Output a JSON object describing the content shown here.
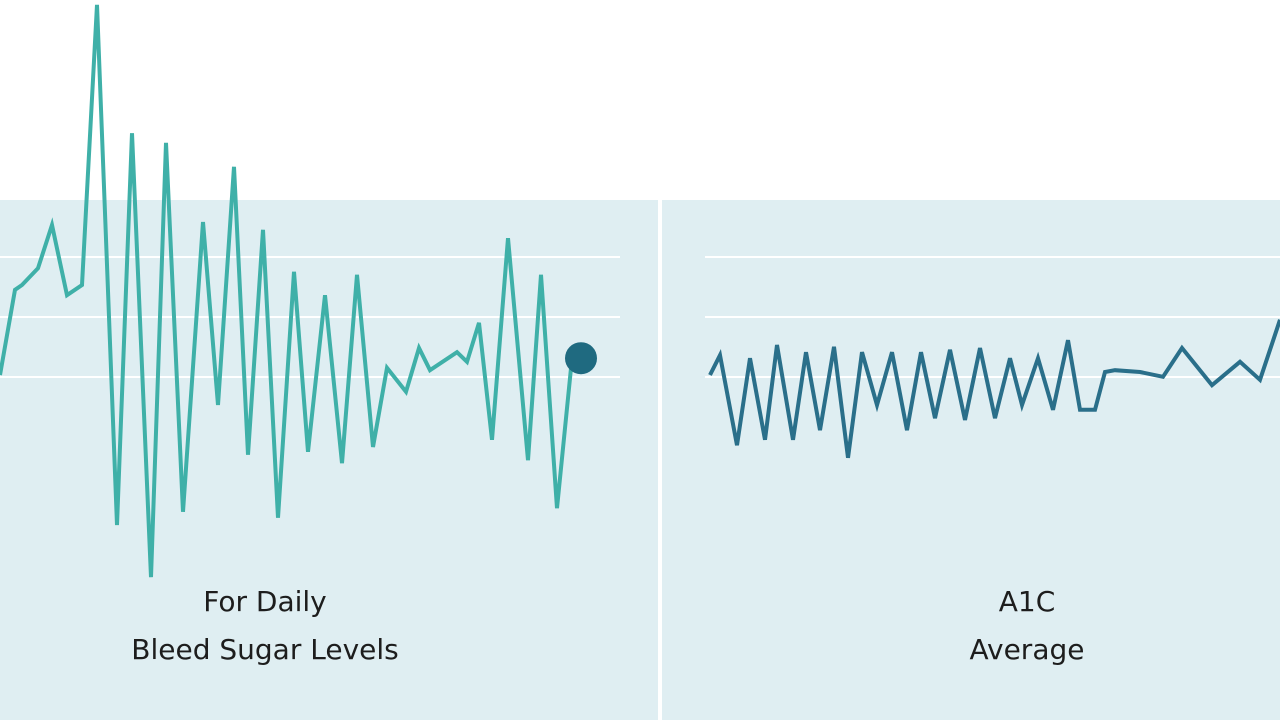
{
  "chart_data": [
    {
      "type": "line",
      "title": "For Daily",
      "subtitle": "Bleed Sugar Levels",
      "xlim": [
        0,
        658
      ],
      "ylim": [
        0,
        100
      ],
      "highlight_last": true,
      "series": [
        {
          "color": "#3fb0a8",
          "x": [
            0,
            15,
            22,
            38,
            52,
            67,
            82,
            97,
            117,
            132,
            151,
            166,
            183,
            203,
            218,
            234,
            248,
            263,
            278,
            294,
            308,
            325,
            342,
            357,
            373,
            387,
            406,
            419,
            430,
            457,
            467,
            479,
            492,
            508,
            528,
            541,
            557,
            572
          ],
          "values": [
            37.5,
            51.7,
            52.5,
            55.3,
            62.5,
            50.8,
            52.5,
            99.2,
            12.5,
            77.8,
            3.8,
            76.2,
            14.7,
            63,
            32.5,
            72.2,
            24.2,
            61.7,
            13.7,
            54.7,
            24.7,
            50.8,
            22.8,
            54.2,
            25.5,
            38.7,
            34.7,
            42,
            38.3,
            41.3,
            39.7,
            46.2,
            26.7,
            60.3,
            23.3,
            54.2,
            15.3,
            40.3
          ]
        }
      ]
    },
    {
      "type": "line",
      "title": "A1C",
      "subtitle": "Average",
      "xlim": [
        0,
        618
      ],
      "ylim": [
        0,
        100
      ],
      "highlight_last": false,
      "series": [
        {
          "color": "#2a6f8a",
          "x": [
            48,
            58,
            75,
            88,
            103,
            115,
            131,
            144,
            158,
            172,
            186,
            200,
            215,
            230,
            245,
            259,
            273,
            288,
            303,
            318,
            333,
            348,
            360,
            376,
            391,
            406,
            418,
            433,
            443,
            453,
            478,
            501,
            520,
            550,
            578,
            598,
            618
          ],
          "values": [
            37.5,
            40.8,
            25.8,
            40.3,
            26.7,
            42.5,
            26.7,
            41.3,
            28.3,
            42.2,
            23.7,
            41.3,
            32.5,
            41.3,
            28.3,
            41.3,
            30.3,
            41.7,
            30,
            42,
            30.3,
            40.3,
            32.5,
            40.3,
            31.7,
            43.3,
            31.7,
            31.7,
            38,
            38.3,
            38,
            37.2,
            42,
            35.8,
            39.7,
            36.7,
            46.7
          ]
        }
      ]
    }
  ]
}
